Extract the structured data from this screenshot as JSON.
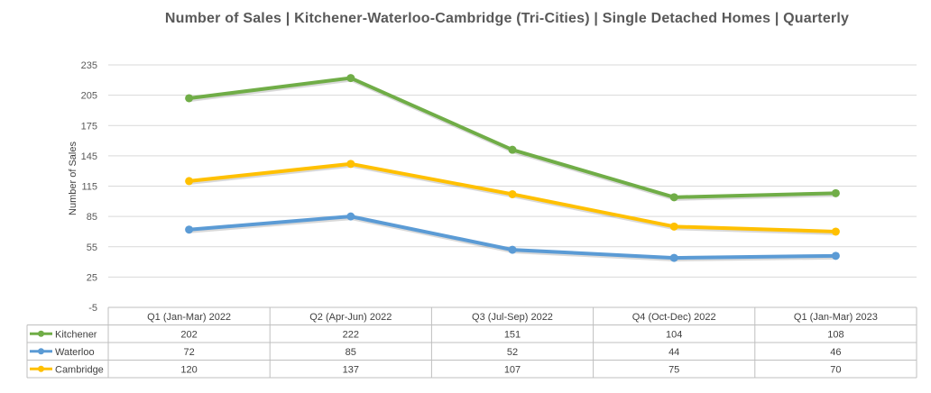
{
  "chart_data": {
    "type": "line",
    "title": "Number of Sales | Kitchener-Waterloo-Cambridge (Tri-Cities) | Single Detached Homes | Quarterly",
    "xlabel": "",
    "ylabel": "Number of Sales",
    "ylim": [
      -5,
      235
    ],
    "yticks": [
      -5,
      25,
      55,
      85,
      115,
      145,
      175,
      205,
      235
    ],
    "grid": true,
    "legend": "data-table-left",
    "categories": [
      "Q1 (Jan-Mar) 2022",
      "Q2 (Apr-Jun) 2022",
      "Q3 (Jul-Sep) 2022",
      "Q4 (Oct-Dec) 2022",
      "Q1 (Jan-Mar) 2023"
    ],
    "series": [
      {
        "name": "Kitchener",
        "color": "#70AD47",
        "values": [
          202,
          222,
          151,
          104,
          108
        ]
      },
      {
        "name": "Waterloo",
        "color": "#5B9BD5",
        "values": [
          72,
          85,
          52,
          44,
          46
        ]
      },
      {
        "name": "Cambridge",
        "color": "#FFC000",
        "values": [
          120,
          137,
          107,
          75,
          70
        ]
      }
    ]
  }
}
